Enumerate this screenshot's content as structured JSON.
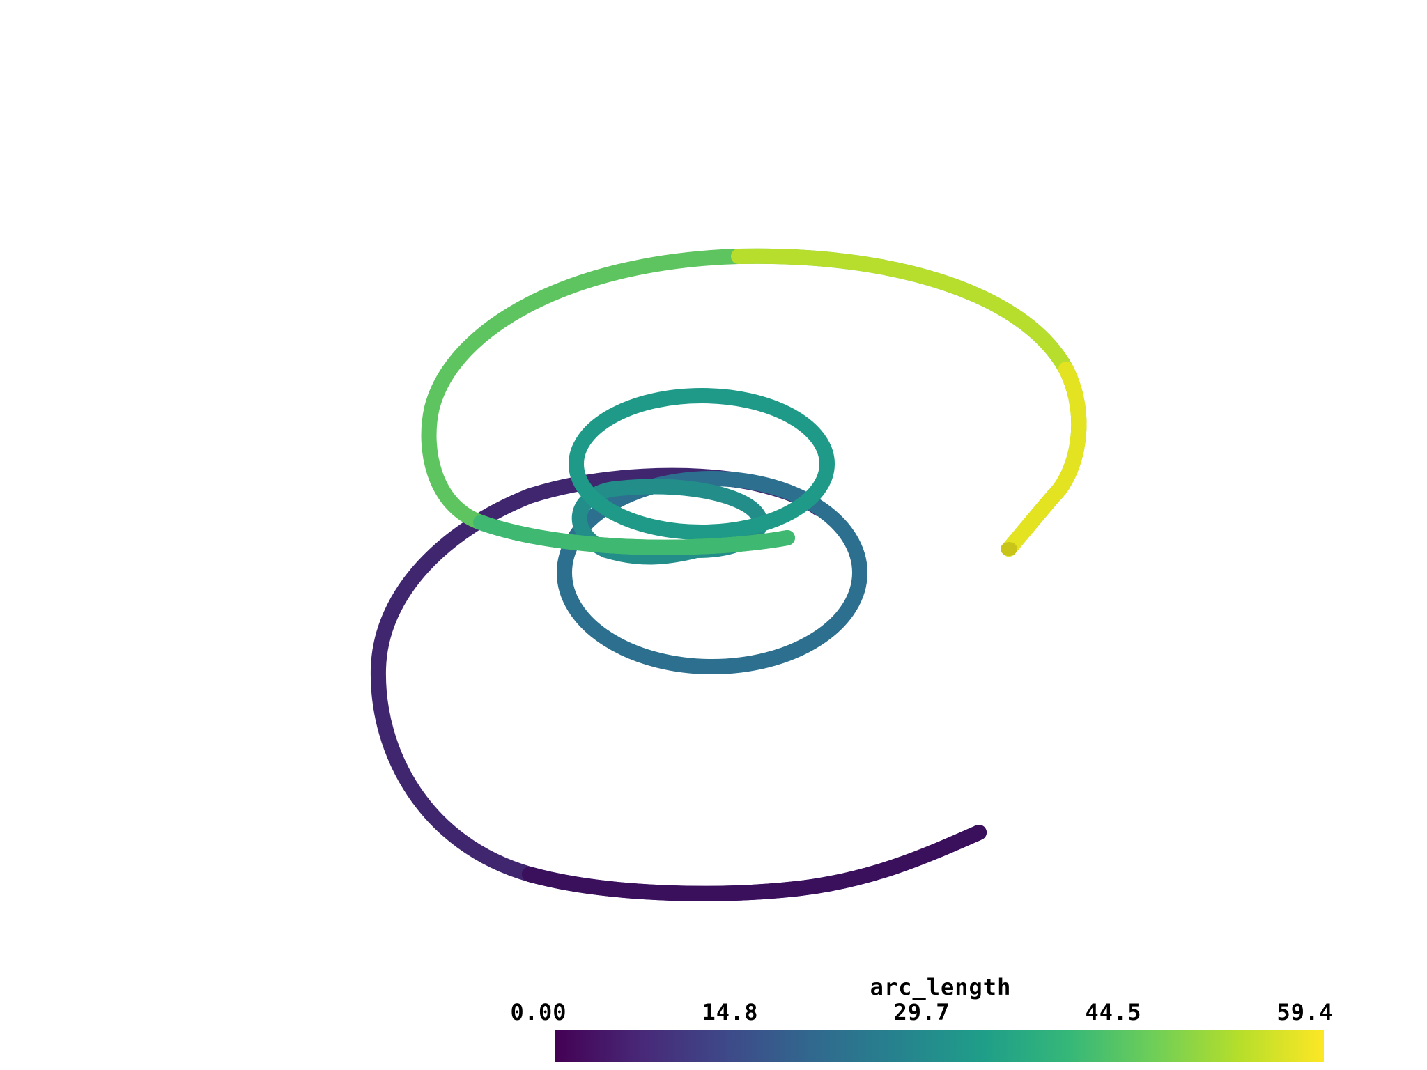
{
  "scalar_bar": {
    "title": "arc_length",
    "ticks": [
      "0.00",
      "14.8",
      "29.7",
      "44.5",
      "59.4"
    ],
    "range": [
      0.0,
      59.4
    ],
    "colormap": "viridis",
    "colors": [
      "#440154",
      "#482878",
      "#3e4989",
      "#31688e",
      "#26828e",
      "#1f9e89",
      "#35b779",
      "#6ece58",
      "#b5de2b",
      "#fde725"
    ]
  },
  "scene": {
    "background": "#ffffff",
    "object": "spiral-tube"
  }
}
